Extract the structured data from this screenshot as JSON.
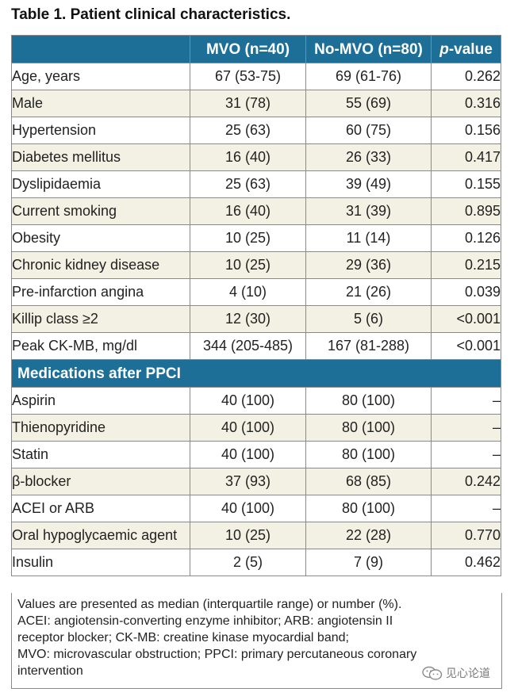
{
  "title": "Table 1. Patient clinical characteristics.",
  "header": {
    "col1": "",
    "col2": "MVO (n=40)",
    "col3": "No-MVO (n=80)",
    "col4_italic": "p",
    "col4_rest": "-value"
  },
  "rows": [
    {
      "label": "Age, years",
      "mvo": "67 (53-75)",
      "nomvo": "69 (61-76)",
      "p": "0.262"
    },
    {
      "label": "Male",
      "mvo": "31 (78)",
      "nomvo": "55 (69)",
      "p": "0.316"
    },
    {
      "label": "Hypertension",
      "mvo": "25 (63)",
      "nomvo": "60 (75)",
      "p": "0.156"
    },
    {
      "label": "Diabetes mellitus",
      "mvo": "16 (40)",
      "nomvo": "26 (33)",
      "p": "0.417"
    },
    {
      "label": "Dyslipidaemia",
      "mvo": "25 (63)",
      "nomvo": "39 (49)",
      "p": "0.155"
    },
    {
      "label": "Current smoking",
      "mvo": "16 (40)",
      "nomvo": "31 (39)",
      "p": "0.895"
    },
    {
      "label": "Obesity",
      "mvo": "10 (25)",
      "nomvo": "11 (14)",
      "p": "0.126"
    },
    {
      "label": "Chronic kidney disease",
      "mvo": "10 (25)",
      "nomvo": "29 (36)",
      "p": "0.215"
    },
    {
      "label": "Pre-infarction angina",
      "mvo": "4 (10)",
      "nomvo": "21 (26)",
      "p": "0.039"
    },
    {
      "label": "Killip class ≥2",
      "mvo": "12 (30)",
      "nomvo": "5 (6)",
      "p": "<0.001"
    },
    {
      "label": "Peak CK-MB, mg/dl",
      "mvo": "344 (205-485)",
      "nomvo": "167 (81-288)",
      "p": "<0.001"
    }
  ],
  "section_label": "Medications after PPCI",
  "med_rows": [
    {
      "label": "Aspirin",
      "mvo": "40 (100)",
      "nomvo": "80 (100)",
      "p": "–"
    },
    {
      "label": "Thienopyridine",
      "mvo": "40 (100)",
      "nomvo": "80 (100)",
      "p": "–"
    },
    {
      "label": "Statin",
      "mvo": "40 (100)",
      "nomvo": "80 (100)",
      "p": "–"
    },
    {
      "label": "β-blocker",
      "mvo": "37 (93)",
      "nomvo": "68 (85)",
      "p": "0.242"
    },
    {
      "label": "ACEI or ARB",
      "mvo": "40 (100)",
      "nomvo": "80 (100)",
      "p": "–"
    },
    {
      "label": "Oral hypoglycaemic agent",
      "mvo": "10 (25)",
      "nomvo": "22 (28)",
      "p": "0.770"
    },
    {
      "label": "Insulin",
      "mvo": "2 (5)",
      "nomvo": "7 (9)",
      "p": "0.462"
    }
  ],
  "footnote": [
    "Values are presented as median (interquartile range) or number (%).",
    "ACEI: angiotensin-converting enzyme inhibitor; ARB: angiotensin II",
    "receptor blocker; CK-MB: creatine kinase myocardial band;",
    "MVO: microvascular obstruction; PPCI: primary percutaneous coronary",
    "intervention"
  ],
  "watermark": {
    "icon": "wechat-icon",
    "text": "见心论道"
  },
  "colors": {
    "header_bg": "#1d6f98",
    "stripe_bg": "#f3f1e3",
    "border": "#8a8a8a"
  }
}
